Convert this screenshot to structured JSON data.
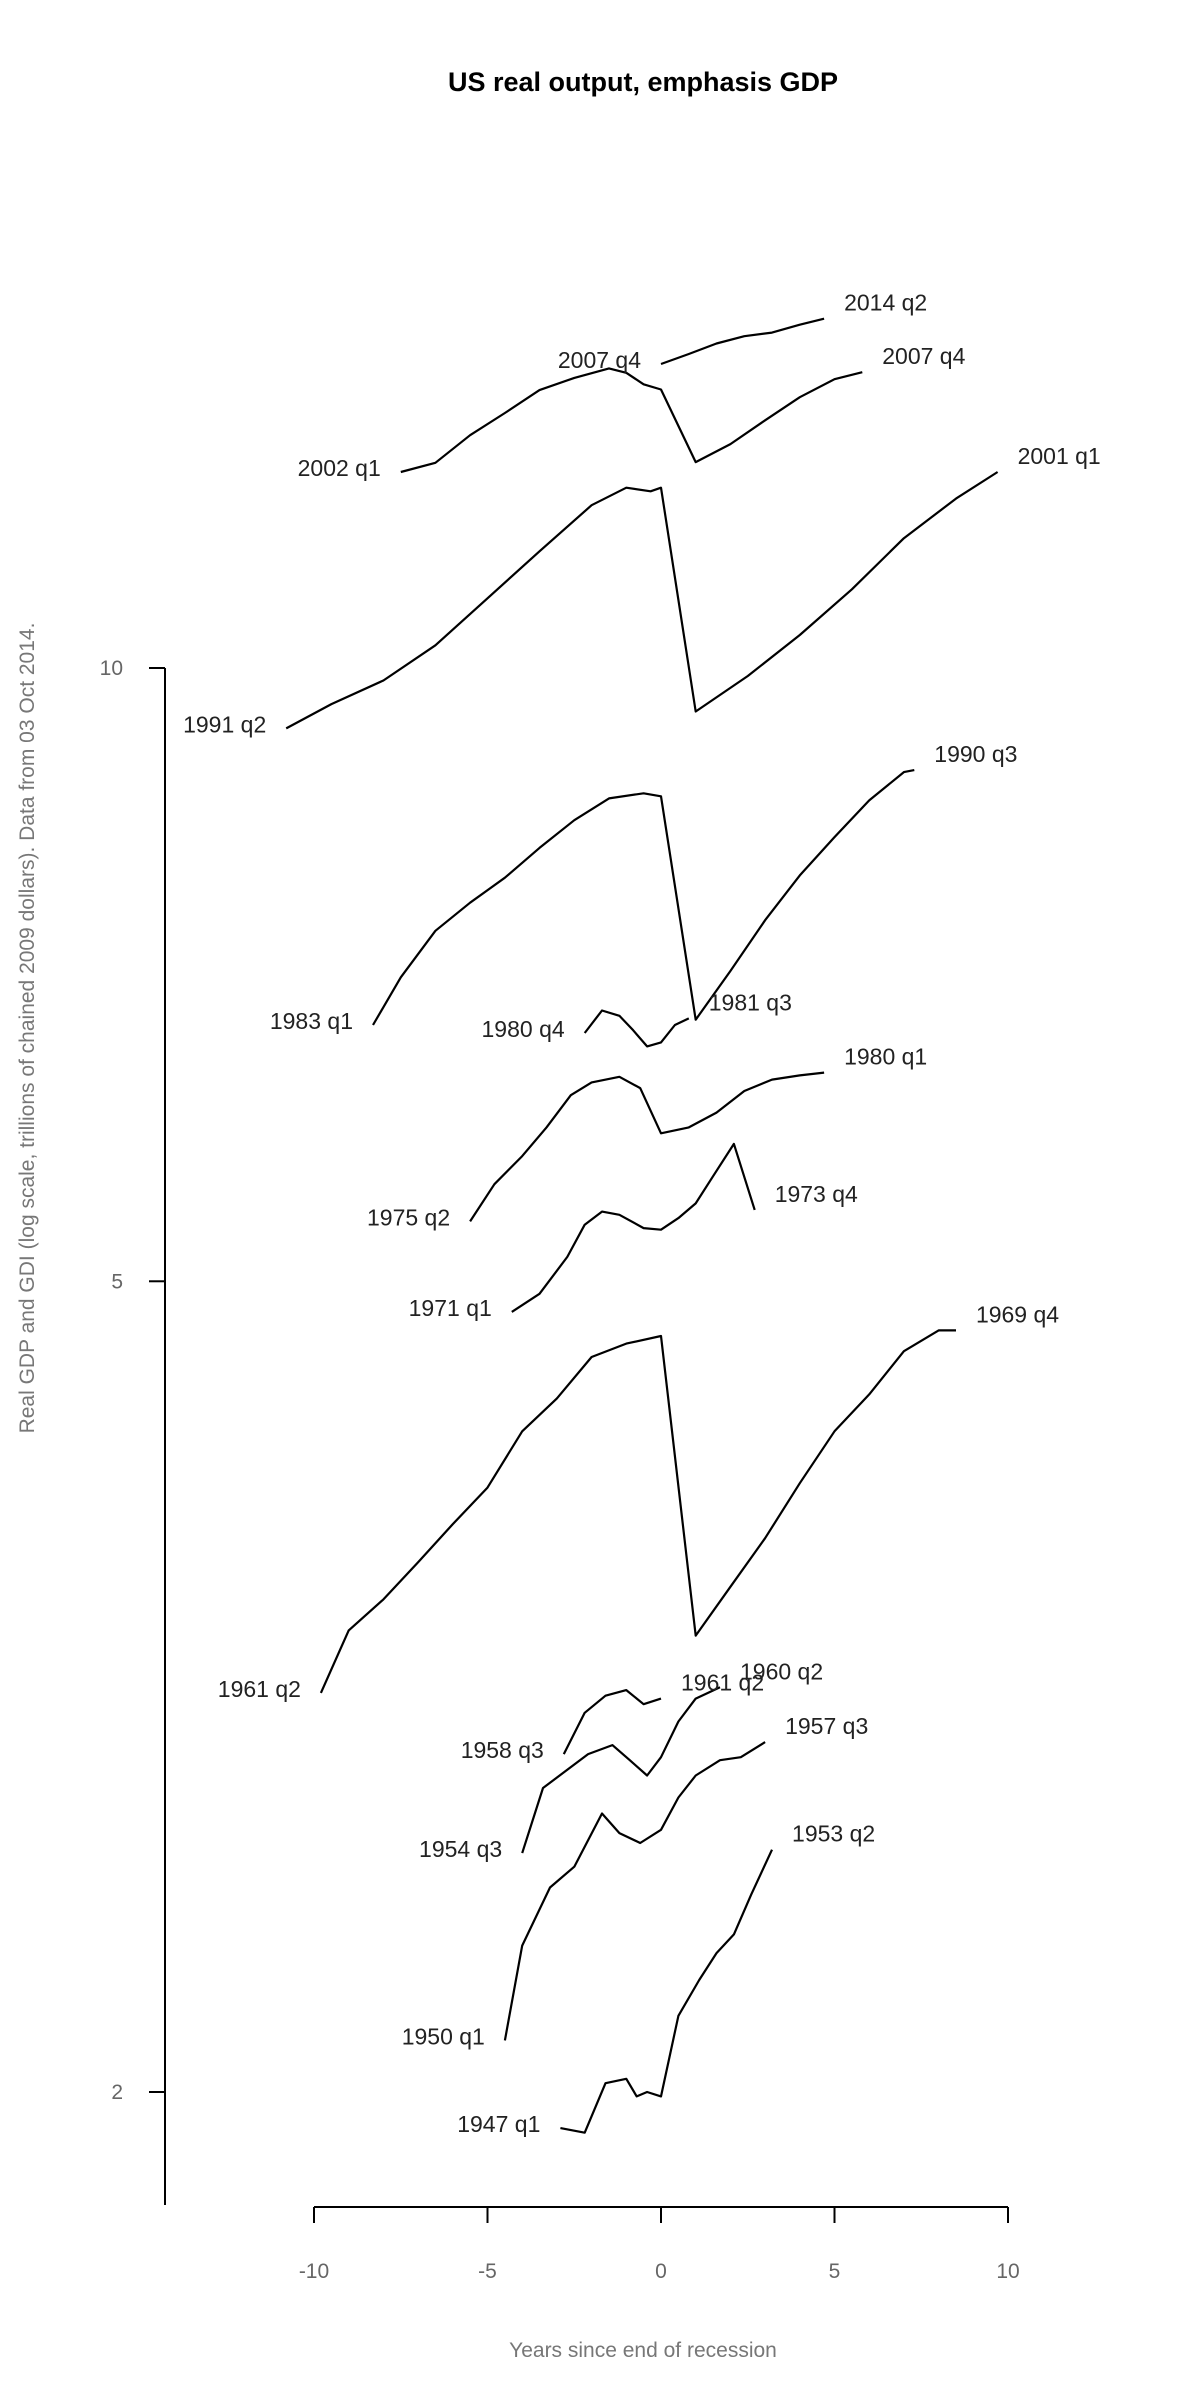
{
  "chart_data": {
    "type": "line",
    "title": "US real output, emphasis GDP",
    "xlabel": "Years since end of recession",
    "ylabel": "Real GDP and GDI (log scale, trillions of chained 2009 dollars). Data from 03 Oct 2014.",
    "xlim": [
      -10,
      10
    ],
    "x_ticks": [
      "-10",
      "-5",
      "0",
      "5",
      "10"
    ],
    "y_ticks": [
      "2",
      "5",
      "10"
    ],
    "y_scale": "log",
    "grid": false,
    "legend": "none",
    "colors": {
      "gdp": "#000000",
      "gdi": "#999999",
      "recession": "#c0504d"
    },
    "recessions": [
      {
        "start_label": "1947 q1",
        "end_label": "1953 q2",
        "x_start": -2.9,
        "x_end": 3.2,
        "y_start": 1.92,
        "y_end": 2.63,
        "path_x": [
          -2.9,
          -2.2,
          -1.6,
          -1.0,
          -0.7,
          -0.4,
          0.0,
          0.5,
          1.1,
          1.6,
          2.1,
          2.6,
          3.2
        ],
        "path_y": [
          1.92,
          1.91,
          2.02,
          2.03,
          1.99,
          2.0,
          1.99,
          2.18,
          2.27,
          2.34,
          2.39,
          2.5,
          2.63
        ]
      },
      {
        "start_label": "1950 q1",
        "end_label": "1957 q3",
        "x_start": -4.5,
        "x_end": 3.0,
        "y_start": 2.12,
        "y_end": 2.97,
        "path_x": [
          -4.5,
          -4.0,
          -3.2,
          -2.5,
          -1.7,
          -1.2,
          -0.6,
          0.0,
          0.5,
          1.0,
          1.7,
          2.3,
          3.0
        ],
        "path_y": [
          2.12,
          2.36,
          2.52,
          2.58,
          2.74,
          2.68,
          2.65,
          2.69,
          2.79,
          2.86,
          2.91,
          2.92,
          2.97
        ]
      },
      {
        "start_label": "1954 q3",
        "end_label": "1960 q2",
        "x_start": -4.0,
        "x_end": 1.7,
        "y_start": 2.62,
        "y_end": 3.16,
        "path_x": [
          -4.0,
          -3.4,
          -2.8,
          -2.1,
          -1.4,
          -0.9,
          -0.4,
          0.0,
          0.5,
          1.0,
          1.7
        ],
        "path_y": [
          2.62,
          2.82,
          2.87,
          2.93,
          2.96,
          2.91,
          2.86,
          2.92,
          3.04,
          3.12,
          3.16
        ]
      },
      {
        "start_label": "1958 q3",
        "end_label": "1961 q2",
        "x_start": -2.8,
        "x_end": 0.0,
        "y_start": 2.93,
        "y_end": 3.12,
        "path_x": [
          -2.8,
          -2.2,
          -1.6,
          -1.0,
          -0.5,
          0.0
        ],
        "path_y": [
          2.93,
          3.07,
          3.13,
          3.15,
          3.1,
          3.12
        ]
      },
      {
        "start_label": "1961 q2",
        "end_label": "1969 q4",
        "x_start": -9.8,
        "x_end": 8.5,
        "y_start": 3.14,
        "y_end": 4.73,
        "path_x": [
          -9.8,
          -9.0,
          -8.0,
          -7.0,
          -6.0,
          -5.0,
          -4.0,
          -3.0,
          -2.0,
          -1.0,
          0.0,
          1.0,
          2.0,
          3.0,
          4.0,
          5.0,
          6.0,
          7.0,
          8.0,
          8.5
        ],
        "path_y": [
          3.14,
          3.37,
          3.49,
          3.64,
          3.8,
          3.96,
          4.22,
          4.38,
          4.59,
          4.66,
          4.7,
          3.35,
          3.54,
          3.74,
          3.98,
          4.22,
          4.4,
          4.62,
          4.73,
          4.73
        ]
      },
      {
        "start_label": "1971 q1",
        "end_label": "1973 q4",
        "x_start": -4.3,
        "x_end": 2.7,
        "y_start": 4.83,
        "y_end": 5.42,
        "path_x": [
          -4.3,
          -3.5,
          -2.7,
          -2.2,
          -1.7,
          -1.2,
          -0.5,
          0.0,
          0.5,
          1.0,
          1.5,
          2.1,
          2.7
        ],
        "path_y": [
          4.83,
          4.93,
          5.14,
          5.33,
          5.41,
          5.39,
          5.31,
          5.3,
          5.37,
          5.46,
          5.63,
          5.84,
          5.42
        ]
      },
      {
        "start_label": "1975 q2",
        "end_label": "1980 q1",
        "x_start": -5.5,
        "x_end": 4.7,
        "y_start": 5.35,
        "y_end": 6.33,
        "path_x": [
          -5.5,
          -4.8,
          -4.0,
          -3.3,
          -2.6,
          -2.0,
          -1.2,
          -0.6,
          0.0,
          0.8,
          1.6,
          2.4,
          3.2,
          4.0,
          4.7
        ],
        "path_y": [
          5.35,
          5.58,
          5.76,
          5.95,
          6.17,
          6.26,
          6.3,
          6.22,
          5.91,
          5.95,
          6.05,
          6.2,
          6.28,
          6.31,
          6.33
        ]
      },
      {
        "start_label": "1980 q4",
        "end_label": "1981 q3",
        "x_start": -2.2,
        "x_end": 0.8,
        "y_start": 6.62,
        "y_end": 6.73,
        "path_x": [
          -2.2,
          -1.7,
          -1.2,
          -0.8,
          -0.4,
          0.0,
          0.4,
          0.8
        ],
        "path_y": [
          6.62,
          6.79,
          6.75,
          6.64,
          6.52,
          6.55,
          6.68,
          6.73
        ]
      },
      {
        "start_label": "1983 q1",
        "end_label": "1990 q3",
        "x_start": -8.3,
        "x_end": 7.3,
        "y_start": 6.68,
        "y_end": 8.91,
        "path_x": [
          -8.3,
          -7.5,
          -6.5,
          -5.5,
          -4.5,
          -3.5,
          -2.5,
          -1.5,
          -0.5,
          0.0,
          1.0,
          2.0,
          3.0,
          4.0,
          5.0,
          6.0,
          7.0,
          7.3
        ],
        "path_y": [
          6.68,
          7.05,
          7.43,
          7.67,
          7.89,
          8.16,
          8.42,
          8.63,
          8.68,
          8.65,
          6.72,
          7.1,
          7.52,
          7.91,
          8.26,
          8.61,
          8.89,
          8.91
        ]
      },
      {
        "start_label": "1991 q2",
        "end_label": "2001 q1",
        "x_start": -10.8,
        "x_end": 9.7,
        "y_start": 9.34,
        "y_end": 12.48,
        "path_x": [
          -10.8,
          -9.5,
          -8.0,
          -6.5,
          -5.0,
          -3.5,
          -2.0,
          -1.0,
          -0.3,
          0.0,
          1.0,
          2.5,
          4.0,
          5.5,
          7.0,
          8.5,
          9.7
        ],
        "path_y": [
          9.34,
          9.6,
          9.86,
          10.26,
          10.82,
          11.41,
          12.02,
          12.26,
          12.21,
          12.26,
          9.52,
          9.91,
          10.38,
          10.93,
          11.58,
          12.11,
          12.48
        ]
      },
      {
        "start_label": "2002 q1",
        "end_label": "2007 q4",
        "x_start": -7.5,
        "x_end": 5.8,
        "y_start": 12.48,
        "y_end": 13.97,
        "path_x": [
          -7.5,
          -6.5,
          -5.5,
          -4.5,
          -3.5,
          -2.5,
          -1.5,
          -1.0,
          -0.5,
          0.0,
          1.0,
          2.0,
          3.0,
          4.0,
          5.0,
          5.8
        ],
        "path_y": [
          12.48,
          12.61,
          13.01,
          13.34,
          13.69,
          13.88,
          14.03,
          13.96,
          13.78,
          13.7,
          12.62,
          12.88,
          13.23,
          13.58,
          13.86,
          13.97
        ]
      },
      {
        "start_label": "2007 q4",
        "end_label": "2014 q2",
        "x_start": 0.0,
        "x_end": 4.7,
        "y_start": 14.1,
        "y_end": 14.84,
        "path_x": [
          0.0,
          0.8,
          1.6,
          2.4,
          3.2,
          4.0,
          4.7
        ],
        "path_y": [
          14.1,
          14.26,
          14.43,
          14.55,
          14.61,
          14.74,
          14.84
        ]
      }
    ]
  }
}
